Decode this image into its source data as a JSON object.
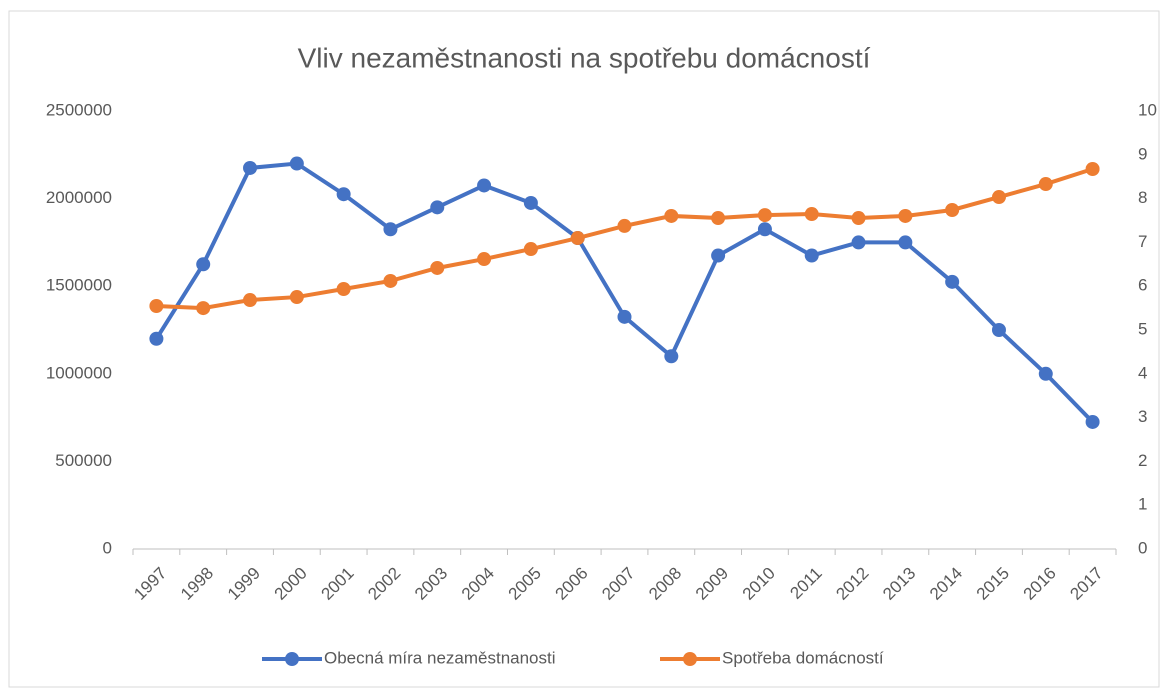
{
  "chart_data": {
    "type": "line",
    "title": "Vliv nezaměstnanosti na spotřebu domácností",
    "categories": [
      "1997",
      "1998",
      "1999",
      "2000",
      "2001",
      "2002",
      "2003",
      "2004",
      "2005",
      "2006",
      "2007",
      "2008",
      "2009",
      "2010",
      "2011",
      "2012",
      "2013",
      "2014",
      "2015",
      "2016",
      "2017"
    ],
    "series": [
      {
        "name": "Obecná míra nezaměstnanosti",
        "color": "#4472c4",
        "axis": "y2",
        "values": [
          4.8,
          6.5,
          8.7,
          8.8,
          8.1,
          7.3,
          7.8,
          8.3,
          7.9,
          7.1,
          5.3,
          4.4,
          6.7,
          7.3,
          6.7,
          7.0,
          7.0,
          6.1,
          5.0,
          4.0,
          2.9
        ]
      },
      {
        "name": "Spotřeba domácností",
        "color": "#ed7d31",
        "values": [
          1387000,
          1375000,
          1421000,
          1438000,
          1484000,
          1530000,
          1604000,
          1655000,
          1712000,
          1775000,
          1844000,
          1901000,
          1889000,
          1906000,
          1912000,
          1889000,
          1901000,
          1935000,
          2009000,
          2083000,
          2169000
        ]
      }
    ],
    "ylim": [
      0,
      2500000
    ],
    "yticks": [
      0,
      500000,
      1000000,
      1500000,
      2000000,
      2500000
    ],
    "y2lim": [
      0,
      10
    ],
    "y2ticks": [
      0,
      1,
      2,
      3,
      4,
      5,
      6,
      7,
      8,
      9,
      10
    ],
    "grid": false,
    "legend": "bottom"
  }
}
